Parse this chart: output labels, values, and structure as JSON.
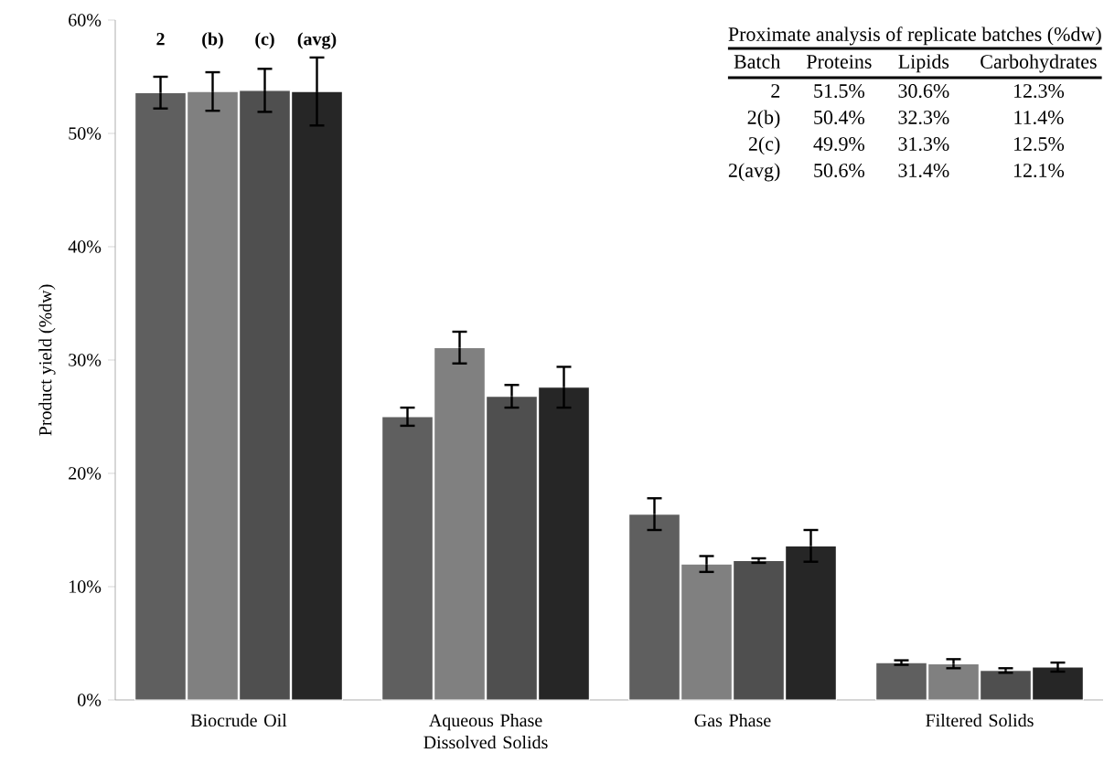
{
  "chart_data": {
    "type": "bar",
    "ylabel": "Product yield (%dw)",
    "categories": [
      "Biocrude Oil",
      "Aqueous Phase Dissolved Solids",
      "Gas Phase",
      "Filtered Solids"
    ],
    "series": [
      {
        "name": "2",
        "color": "#5f5f5f",
        "values": [
          53.6,
          25.0,
          16.4,
          3.3
        ],
        "errors": [
          1.4,
          0.8,
          1.4,
          0.2
        ]
      },
      {
        "name": "(b)",
        "color": "#808080",
        "values": [
          53.7,
          31.1,
          12.0,
          3.2
        ],
        "errors": [
          1.7,
          1.4,
          0.7,
          0.4
        ]
      },
      {
        "name": "(c)",
        "color": "#4f4f4f",
        "values": [
          53.8,
          26.8,
          12.3,
          2.6
        ],
        "errors": [
          1.9,
          1.0,
          0.2,
          0.2
        ]
      },
      {
        "name": "(avg)",
        "color": "#262626",
        "values": [
          53.7,
          27.6,
          13.6,
          2.9
        ],
        "errors": [
          3.0,
          1.8,
          1.4,
          0.4
        ]
      }
    ],
    "ylim": [
      0,
      60
    ],
    "yticks": [
      {
        "value": 0,
        "label": "0%"
      },
      {
        "value": 10,
        "label": "10%"
      },
      {
        "value": 20,
        "label": "20%"
      },
      {
        "value": 30,
        "label": "30%"
      },
      {
        "value": 40,
        "label": "40%"
      },
      {
        "value": 50,
        "label": "50%"
      },
      {
        "value": 60,
        "label": "60%"
      }
    ],
    "grid": false,
    "legend": false,
    "annotations": [
      "Proximate analysis of replicate batches (%dw)",
      "Batch",
      "Proteins",
      "Lipids",
      "Carbohydrates",
      "2",
      "51.5%",
      "30.6%",
      "12.3%",
      "2(b)",
      "50.4%",
      "32.3%",
      "11.4%",
      "2(c)",
      "49.9%",
      "31.3%",
      "12.5%",
      "2(avg)",
      "50.6%",
      "31.4%",
      "12.1%"
    ]
  }
}
